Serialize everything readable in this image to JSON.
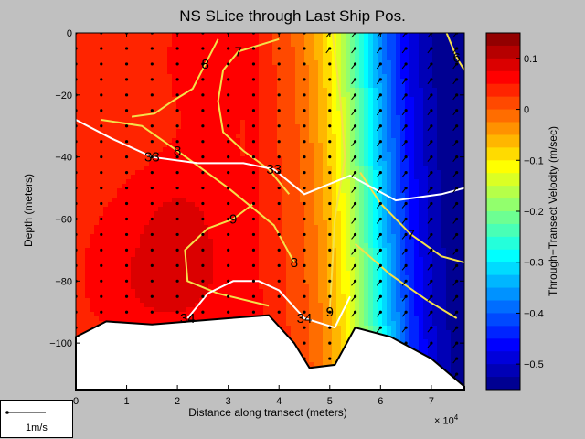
{
  "chart_data": {
    "type": "contour",
    "title": "NS SLice through Last Ship Pos.",
    "xlabel": "Distance along transect (meters)",
    "x_multiplier": "× 10",
    "x_multiplier_exp": "4",
    "ylabel": "Depth (meters)",
    "xlim": [
      0,
      7.65
    ],
    "ylim": [
      -115,
      0
    ],
    "x_ticks": [
      "0",
      "1",
      "2",
      "3",
      "4",
      "5",
      "6",
      "7"
    ],
    "y_ticks": [
      "0",
      "−20",
      "−40",
      "−60",
      "−80",
      "−100"
    ],
    "colorbar": {
      "label": "Through−Transect Velocity (m/sec)",
      "range": [
        -0.55,
        0.15
      ],
      "ticks": [
        "0.1",
        "0",
        "−0.1",
        "−0.2",
        "−0.3",
        "−0.4",
        "−0.5"
      ],
      "levels": [
        0.15,
        0.125,
        0.1,
        0.075,
        0.05,
        0.025,
        0,
        -0.025,
        -0.05,
        -0.075,
        -0.1,
        -0.125,
        -0.15,
        -0.175,
        -0.2,
        -0.225,
        -0.25,
        -0.275,
        -0.3,
        -0.325,
        -0.35,
        -0.375,
        -0.4,
        -0.425,
        -0.45,
        -0.475,
        -0.5,
        -0.525,
        -0.55
      ]
    },
    "bottom_profile": {
      "x": [
        0,
        0.6,
        1.5,
        3.0,
        3.8,
        4.3,
        4.6,
        5.1,
        5.5,
        6.2,
        7.0,
        7.65
      ],
      "depth": [
        -98,
        -93,
        -94,
        -92,
        -91,
        -100,
        -108,
        -107,
        -95,
        -98,
        -105,
        -114
      ]
    },
    "temperature_contours": [
      {
        "label": "8",
        "x": [
          2.8,
          2.55,
          2.3,
          1.9,
          1.55,
          1.1
        ],
        "y": [
          -2,
          -10,
          -18,
          -22,
          -26,
          -27
        ]
      },
      {
        "label": "7",
        "x": [
          4.0,
          3.2,
          2.9,
          2.8,
          2.9,
          3.3,
          3.8,
          4.2
        ],
        "y": [
          -2,
          -6,
          -12,
          -22,
          -32,
          -38,
          -44,
          -52
        ]
      },
      {
        "label": "9",
        "x": [
          3.5,
          3.1,
          2.6,
          2.15,
          2.2,
          2.8,
          3.8
        ],
        "y": [
          -55,
          -60,
          -63,
          -70,
          -80,
          -84,
          -88
        ]
      },
      {
        "label": "8",
        "x": [
          0.5,
          1.3,
          2.0,
          3.0,
          3.9,
          4.3
        ],
        "y": [
          -28,
          -30,
          -38,
          -50,
          -62,
          -74
        ]
      },
      {
        "label": "9",
        "x": [
          5.05,
          5.2,
          5.3,
          5.1,
          5.0
        ],
        "y": [
          0,
          -20,
          -40,
          -60,
          -90
        ]
      },
      {
        "label": "7",
        "x": [
          5.6,
          6.0,
          6.6,
          7.2,
          7.65
        ],
        "y": [
          -45,
          -55,
          -65,
          -72,
          -74
        ]
      },
      {
        "label": "8",
        "x": [
          5.5,
          6.2,
          6.9,
          7.5
        ],
        "y": [
          -68,
          -78,
          -86,
          -92
        ]
      },
      {
        "label": "6",
        "x": [
          7.3,
          7.5,
          7.65
        ],
        "y": [
          0,
          -8,
          -12
        ]
      }
    ],
    "salinity_contours": [
      {
        "label": "33",
        "x": [
          0,
          0.7,
          1.5,
          2.4,
          3.3,
          3.9,
          4.5,
          5.4,
          6.3,
          7.2,
          7.65
        ],
        "y": [
          -28,
          -34,
          -40,
          -42,
          -42,
          -44,
          -52,
          -46,
          -54,
          -52,
          -50
        ]
      },
      {
        "label": "34",
        "x": [
          2.2,
          2.6,
          3.1,
          3.6,
          4.0,
          4.5,
          5.1,
          5.4
        ],
        "y": [
          -92,
          -84,
          -80,
          -80,
          -83,
          -92,
          -95,
          -85
        ]
      }
    ],
    "labels_on_plot": [
      "8",
      "7",
      "33",
      "8",
      "33",
      "9",
      "8",
      "34",
      "9",
      "34",
      "7",
      "6"
    ],
    "scale_arrow_label": "1m/s"
  }
}
